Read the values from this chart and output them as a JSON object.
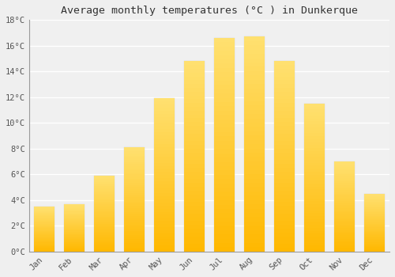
{
  "title": "Average monthly temperatures (°C ) in Dunkerque",
  "months": [
    "Jan",
    "Feb",
    "Mar",
    "Apr",
    "May",
    "Jun",
    "Jul",
    "Aug",
    "Sep",
    "Oct",
    "Nov",
    "Dec"
  ],
  "values": [
    3.5,
    3.7,
    5.9,
    8.1,
    11.9,
    14.8,
    16.6,
    16.7,
    14.8,
    11.5,
    7.0,
    4.5
  ],
  "bar_color_bottom": "#FFB800",
  "bar_color_top": "#FFD870",
  "ylim": [
    0,
    18
  ],
  "ytick_step": 2,
  "background_color": "#EFEFEF",
  "plot_bg_color": "#F0F0F0",
  "grid_color": "#FFFFFF",
  "title_fontsize": 9.5,
  "tick_fontsize": 7.5,
  "font_family": "monospace"
}
